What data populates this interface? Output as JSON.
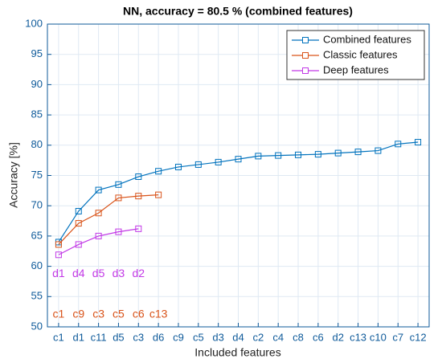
{
  "chart_data": {
    "type": "line",
    "title": "NN, accuracy = 80.5 % (combined features)",
    "xlabel": "Included features",
    "ylabel": "Accuracy [%]",
    "categories": [
      "c1",
      "d1",
      "c11",
      "d5",
      "c3",
      "d6",
      "c9",
      "c5",
      "d3",
      "d4",
      "c2",
      "c4",
      "c8",
      "c6",
      "d2",
      "c13",
      "c10",
      "c7",
      "c12"
    ],
    "series": [
      {
        "name": "Combined features",
        "color": "#0072bd",
        "values": [
          64.0,
          69.1,
          72.6,
          73.5,
          74.8,
          75.7,
          76.4,
          76.8,
          77.2,
          77.7,
          78.2,
          78.3,
          78.4,
          78.5,
          78.7,
          78.9,
          79.1,
          80.2,
          80.5
        ]
      },
      {
        "name": "Classic features",
        "color": "#d95319",
        "values": [
          63.6,
          67.1,
          68.8,
          71.3,
          71.6,
          71.8,
          null,
          null,
          null,
          null,
          null,
          null,
          null,
          null,
          null,
          null,
          null,
          null,
          null
        ]
      },
      {
        "name": "Deep features",
        "color": "#c238e6",
        "values": [
          61.9,
          63.6,
          65.0,
          65.7,
          66.2,
          null,
          null,
          null,
          null,
          null,
          null,
          null,
          null,
          null,
          null,
          null,
          null,
          null,
          null
        ]
      }
    ],
    "annotations": [
      {
        "color": "#c238e6",
        "y": 58.7,
        "texts": [
          "d1",
          "d4",
          "d5",
          "d3",
          "d2"
        ]
      },
      {
        "color": "#d95319",
        "y": 52,
        "texts": [
          "c1",
          "c9",
          "c3",
          "c5",
          "c6",
          "c13"
        ]
      }
    ],
    "ylim": [
      50,
      100
    ],
    "yticks": [
      50,
      55,
      60,
      65,
      70,
      75,
      80,
      85,
      90,
      95,
      100
    ],
    "grid": true,
    "legend": "top-right"
  }
}
